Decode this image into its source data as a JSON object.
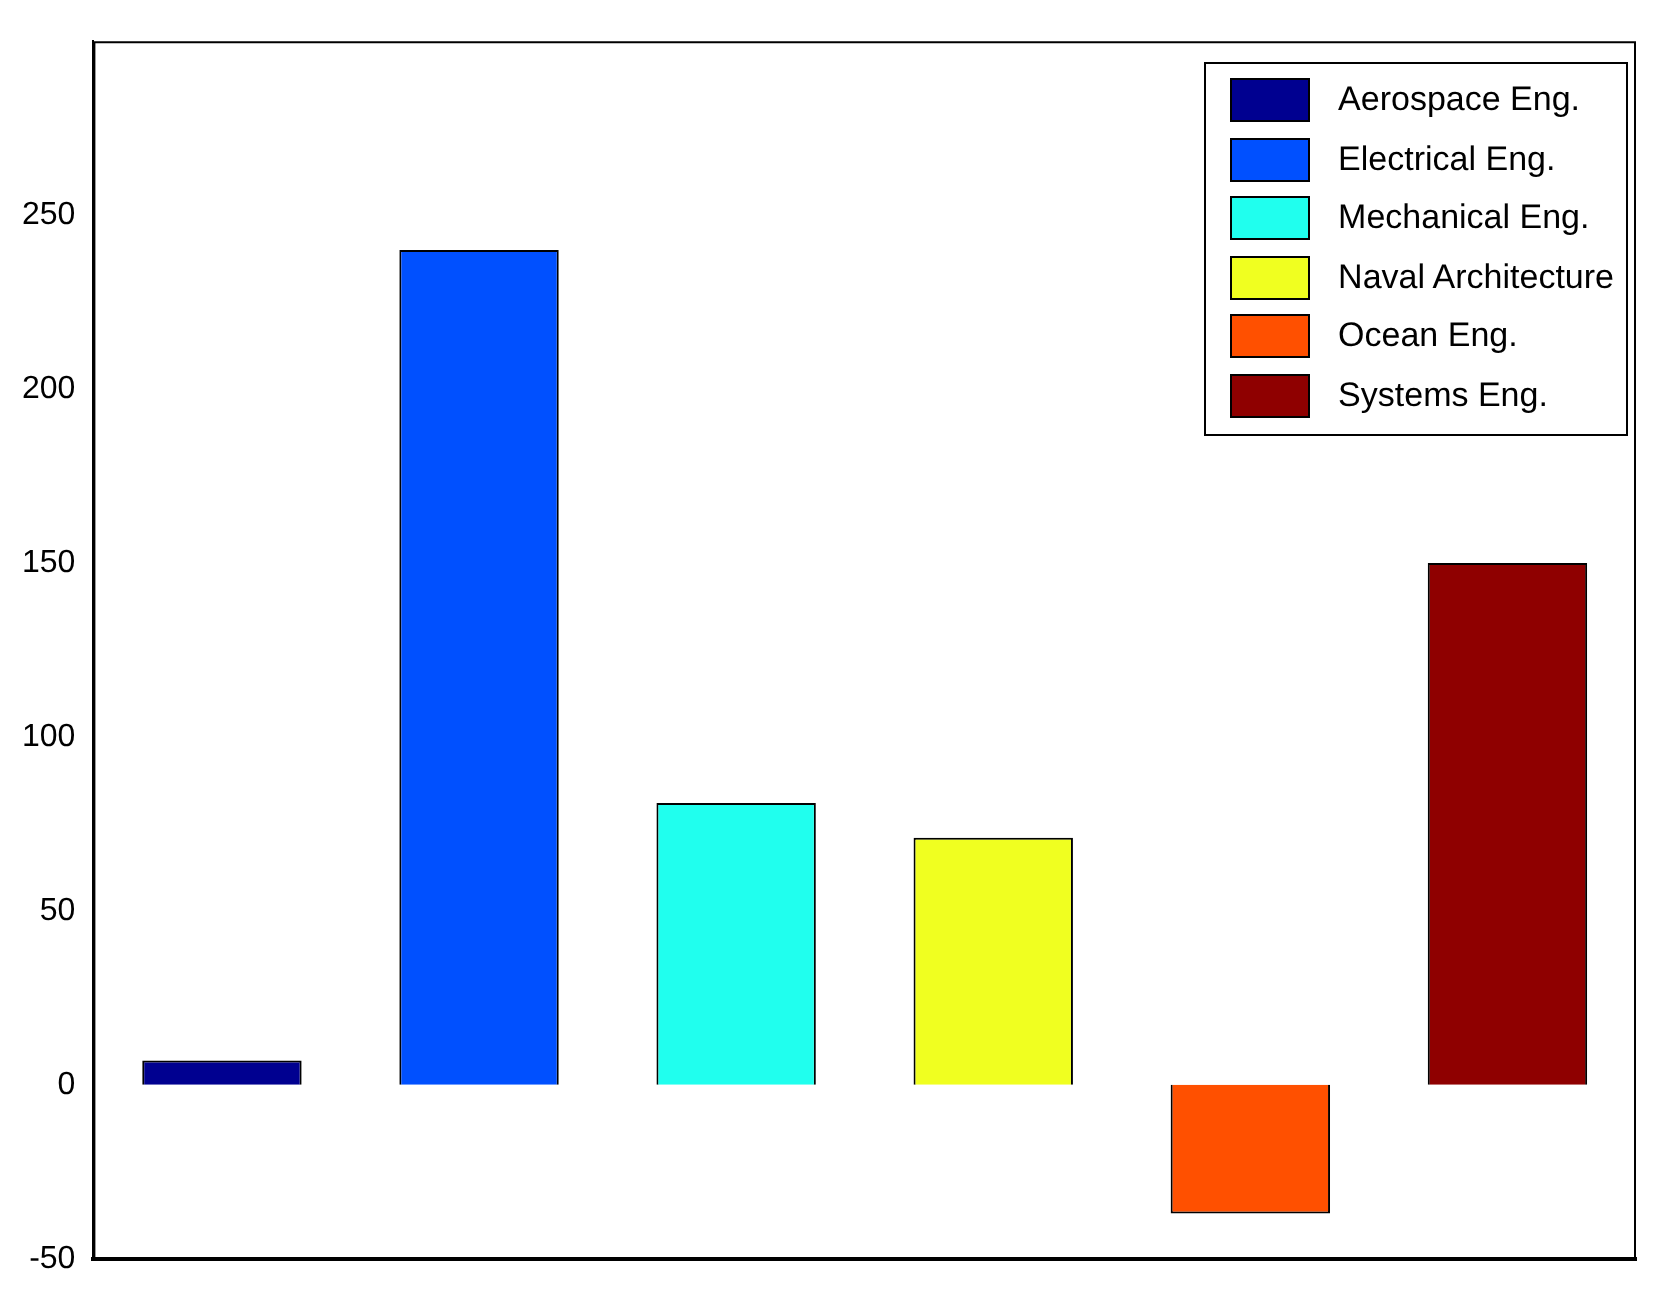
{
  "chart_data": {
    "type": "bar",
    "categories": [
      null,
      null,
      null,
      null,
      null,
      null
    ],
    "series": [
      {
        "name": "Aerospace Eng.",
        "color": "#000090",
        "values": [
          7,
          null,
          null,
          null,
          null,
          null
        ]
      },
      {
        "name": "Electrical Eng.",
        "color": "#0050ff",
        "values": [
          null,
          240,
          null,
          null,
          null,
          null
        ]
      },
      {
        "name": "Mechanical Eng.",
        "color": "#20ffee",
        "values": [
          null,
          null,
          81,
          null,
          null,
          null
        ]
      },
      {
        "name": "Naval Architecture",
        "color": "#f0ff20",
        "values": [
          null,
          null,
          null,
          71,
          null,
          null
        ]
      },
      {
        "name": "Ocean Eng.",
        "color": "#ff5000",
        "values": [
          null,
          null,
          null,
          null,
          -37,
          null
        ]
      },
      {
        "name": "Systems Eng.",
        "color": "#8f0000",
        "values": [
          null,
          null,
          null,
          null,
          null,
          150
        ]
      }
    ],
    "ylim": [
      -50,
      300
    ],
    "yticks": [
      -50,
      0,
      50,
      100,
      150,
      200,
      250
    ],
    "grid": false,
    "legend": "top right",
    "tick_labels": "y"
  }
}
